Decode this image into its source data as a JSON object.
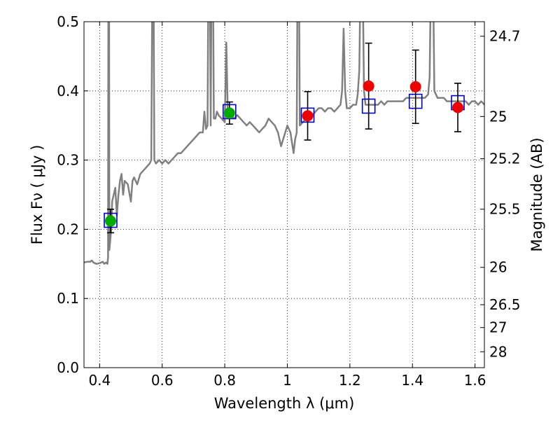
{
  "chart_data": {
    "type": "scatter",
    "xlabel": "Wavelength  λ (μm)",
    "ylabel": "Flux  Fν ( μJy )",
    "y2label": "Magnitude (AB)",
    "xlim": [
      0.35,
      1.63
    ],
    "ylim": [
      0.0,
      0.5
    ],
    "grid": true,
    "legend": "none",
    "x_ticks": [
      0.4,
      0.6,
      0.8,
      1.0,
      1.2,
      1.4,
      1.6
    ],
    "x_tick_labels": [
      "0.4",
      "0.6",
      "0.8",
      "1",
      "1.2",
      "1.4",
      "1.6"
    ],
    "y_ticks": [
      0.0,
      0.1,
      0.2,
      0.3,
      0.4,
      0.5
    ],
    "y_tick_labels": [
      "0.0",
      "0.1",
      "0.2",
      "0.3",
      "0.4",
      "0.5"
    ],
    "y2_ticks": [
      {
        "label": "24.7",
        "flux": 0.479
      },
      {
        "label": "25",
        "flux": 0.363
      },
      {
        "label": "25.2",
        "flux": 0.302
      },
      {
        "label": "25.5",
        "flux": 0.229
      },
      {
        "label": "26",
        "flux": 0.145
      },
      {
        "label": "26.5",
        "flux": 0.091
      },
      {
        "label": "27",
        "flux": 0.058
      },
      {
        "label": "28",
        "flux": 0.023
      }
    ],
    "colors": {
      "spectrum": "#808080",
      "model": "#0000cc",
      "photometry_green": "#00aa00",
      "photometry_red": "#ee0000",
      "errorbar": "#000000"
    },
    "series": [
      {
        "type": "line",
        "color": "#808080",
        "points": [
          [
            0.35,
            0.152
          ],
          [
            0.36,
            0.153
          ],
          [
            0.37,
            0.153
          ],
          [
            0.375,
            0.155
          ],
          [
            0.38,
            0.152
          ],
          [
            0.39,
            0.15
          ],
          [
            0.4,
            0.151
          ],
          [
            0.41,
            0.153
          ],
          [
            0.415,
            0.15
          ],
          [
            0.42,
            0.152
          ],
          [
            0.425,
            0.15
          ],
          [
            0.427,
            0.16
          ],
          [
            0.428,
            0.6
          ],
          [
            0.43,
            0.6
          ],
          [
            0.431,
            0.17
          ],
          [
            0.433,
            0.18
          ],
          [
            0.437,
            0.2
          ],
          [
            0.44,
            0.24
          ],
          [
            0.45,
            0.26
          ],
          [
            0.455,
            0.22
          ],
          [
            0.46,
            0.25
          ],
          [
            0.465,
            0.27
          ],
          [
            0.47,
            0.28
          ],
          [
            0.475,
            0.25
          ],
          [
            0.48,
            0.27
          ],
          [
            0.49,
            0.265
          ],
          [
            0.5,
            0.24
          ],
          [
            0.505,
            0.27
          ],
          [
            0.51,
            0.275
          ],
          [
            0.52,
            0.265
          ],
          [
            0.53,
            0.28
          ],
          [
            0.54,
            0.285
          ],
          [
            0.55,
            0.29
          ],
          [
            0.56,
            0.295
          ],
          [
            0.565,
            0.3
          ],
          [
            0.569,
            0.6
          ],
          [
            0.572,
            0.6
          ],
          [
            0.575,
            0.3
          ],
          [
            0.58,
            0.295
          ],
          [
            0.59,
            0.3
          ],
          [
            0.6,
            0.295
          ],
          [
            0.61,
            0.3
          ],
          [
            0.62,
            0.295
          ],
          [
            0.63,
            0.3
          ],
          [
            0.64,
            0.305
          ],
          [
            0.65,
            0.31
          ],
          [
            0.66,
            0.31
          ],
          [
            0.67,
            0.315
          ],
          [
            0.68,
            0.32
          ],
          [
            0.69,
            0.325
          ],
          [
            0.7,
            0.33
          ],
          [
            0.71,
            0.335
          ],
          [
            0.72,
            0.34
          ],
          [
            0.73,
            0.34
          ],
          [
            0.735,
            0.37
          ],
          [
            0.74,
            0.345
          ],
          [
            0.745,
            0.35
          ],
          [
            0.748,
            0.6
          ],
          [
            0.752,
            0.6
          ],
          [
            0.755,
            0.35
          ],
          [
            0.758,
            0.6
          ],
          [
            0.762,
            0.6
          ],
          [
            0.765,
            0.36
          ],
          [
            0.77,
            0.36
          ],
          [
            0.775,
            0.37
          ],
          [
            0.78,
            0.365
          ],
          [
            0.79,
            0.36
          ],
          [
            0.8,
            0.355
          ],
          [
            0.805,
            0.47
          ],
          [
            0.81,
            0.36
          ],
          [
            0.82,
            0.365
          ],
          [
            0.83,
            0.36
          ],
          [
            0.84,
            0.365
          ],
          [
            0.85,
            0.36
          ],
          [
            0.86,
            0.355
          ],
          [
            0.87,
            0.35
          ],
          [
            0.88,
            0.355
          ],
          [
            0.89,
            0.35
          ],
          [
            0.9,
            0.345
          ],
          [
            0.91,
            0.34
          ],
          [
            0.92,
            0.345
          ],
          [
            0.93,
            0.35
          ],
          [
            0.94,
            0.36
          ],
          [
            0.95,
            0.355
          ],
          [
            0.96,
            0.35
          ],
          [
            0.97,
            0.34
          ],
          [
            0.98,
            0.32
          ],
          [
            0.99,
            0.335
          ],
          [
            1.0,
            0.35
          ],
          [
            1.01,
            0.34
          ],
          [
            1.02,
            0.31
          ],
          [
            1.025,
            0.33
          ],
          [
            1.03,
            0.34
          ],
          [
            1.033,
            0.6
          ],
          [
            1.037,
            0.6
          ],
          [
            1.04,
            0.35
          ],
          [
            1.05,
            0.355
          ],
          [
            1.06,
            0.36
          ],
          [
            1.07,
            0.365
          ],
          [
            1.08,
            0.365
          ],
          [
            1.09,
            0.37
          ],
          [
            1.1,
            0.375
          ],
          [
            1.11,
            0.375
          ],
          [
            1.12,
            0.37
          ],
          [
            1.13,
            0.375
          ],
          [
            1.14,
            0.375
          ],
          [
            1.15,
            0.37
          ],
          [
            1.16,
            0.375
          ],
          [
            1.17,
            0.38
          ],
          [
            1.175,
            0.4
          ],
          [
            1.18,
            0.49
          ],
          [
            1.185,
            0.4
          ],
          [
            1.19,
            0.375
          ],
          [
            1.2,
            0.375
          ],
          [
            1.21,
            0.38
          ],
          [
            1.22,
            0.38
          ],
          [
            1.225,
            0.395
          ],
          [
            1.23,
            0.43
          ],
          [
            1.235,
            0.6
          ],
          [
            1.24,
            0.6
          ],
          [
            1.245,
            0.4
          ],
          [
            1.25,
            0.38
          ],
          [
            1.26,
            0.38
          ],
          [
            1.27,
            0.38
          ],
          [
            1.28,
            0.38
          ],
          [
            1.29,
            0.38
          ],
          [
            1.3,
            0.385
          ],
          [
            1.31,
            0.38
          ],
          [
            1.32,
            0.385
          ],
          [
            1.33,
            0.385
          ],
          [
            1.34,
            0.385
          ],
          [
            1.35,
            0.385
          ],
          [
            1.36,
            0.385
          ],
          [
            1.37,
            0.385
          ],
          [
            1.38,
            0.39
          ],
          [
            1.39,
            0.39
          ],
          [
            1.4,
            0.39
          ],
          [
            1.41,
            0.39
          ],
          [
            1.42,
            0.39
          ],
          [
            1.43,
            0.39
          ],
          [
            1.44,
            0.39
          ],
          [
            1.45,
            0.395
          ],
          [
            1.455,
            0.42
          ],
          [
            1.46,
            0.6
          ],
          [
            1.465,
            0.6
          ],
          [
            1.47,
            0.4
          ],
          [
            1.48,
            0.39
          ],
          [
            1.49,
            0.39
          ],
          [
            1.5,
            0.39
          ],
          [
            1.51,
            0.385
          ],
          [
            1.52,
            0.385
          ],
          [
            1.53,
            0.385
          ],
          [
            1.54,
            0.385
          ],
          [
            1.55,
            0.385
          ],
          [
            1.56,
            0.385
          ],
          [
            1.57,
            0.385
          ],
          [
            1.58,
            0.38
          ],
          [
            1.59,
            0.385
          ],
          [
            1.6,
            0.385
          ],
          [
            1.61,
            0.38
          ],
          [
            1.62,
            0.385
          ],
          [
            1.63,
            0.38
          ]
        ]
      },
      {
        "type": "scatter",
        "marker": "open-square",
        "color": "#0000cc",
        "points": [
          [
            0.435,
            0.213
          ],
          [
            0.815,
            0.37
          ],
          [
            1.065,
            0.365
          ],
          [
            1.26,
            0.378
          ],
          [
            1.41,
            0.385
          ],
          [
            1.545,
            0.383
          ]
        ]
      },
      {
        "type": "scatter",
        "marker": "filled-circle",
        "color": "#00aa00",
        "points": [
          {
            "x": 0.435,
            "y": 0.212,
            "err": 0.017
          },
          {
            "x": 0.815,
            "y": 0.368,
            "err": 0.016
          }
        ]
      },
      {
        "type": "scatter",
        "marker": "filled-circle",
        "color": "#ee0000",
        "points": [
          {
            "x": 1.065,
            "y": 0.364,
            "err": 0.035
          },
          {
            "x": 1.26,
            "y": 0.407,
            "err": 0.062
          },
          {
            "x": 1.41,
            "y": 0.406,
            "err": 0.053
          },
          {
            "x": 1.545,
            "y": 0.376,
            "err": 0.035
          }
        ]
      }
    ]
  }
}
